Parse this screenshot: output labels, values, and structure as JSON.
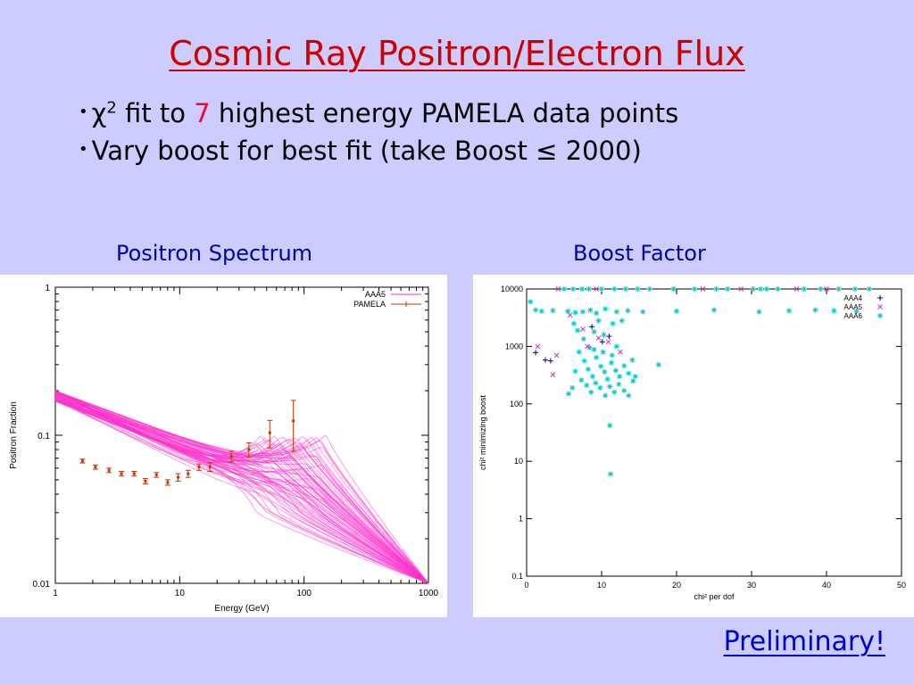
{
  "slide": {
    "title": "Cosmic Ray Positron/Electron Flux",
    "bullets": [
      {
        "pre": "χ",
        "sup": "2",
        "mid": " fit to ",
        "highlight": "7",
        "post": " highest energy PAMELA data points"
      },
      {
        "text": "Vary boost for best fit  (take Boost ≤ 2000)"
      }
    ],
    "bullet_char": "•",
    "panel_titles": [
      "Positron  Spectrum",
      "Boost Factor"
    ],
    "footer": "Preliminary!",
    "colors": {
      "background": "#ccccff",
      "title": "#cc0000",
      "highlight": "#ff0033",
      "panel_title": "#0000aa"
    }
  },
  "chart_data": [
    {
      "type": "line",
      "title": "",
      "xlabel": "Energy (GeV)",
      "ylabel": "Positron Fraction",
      "x_scale": "log",
      "y_scale": "log",
      "xlim": [
        1,
        1000
      ],
      "ylim": [
        0.01,
        1
      ],
      "x_ticks": [
        "1",
        "10",
        "100",
        "1000"
      ],
      "y_ticks": [
        "0.01",
        "0.1",
        "1"
      ],
      "legend": {
        "position": "top-right",
        "entries": [
          "AAA5",
          "PAMELA"
        ]
      },
      "series": [
        {
          "name": "AAA5",
          "color": "#ff33cc",
          "style": "family of thin lines (one per model)",
          "converge_at": [
            1000,
            0.01
          ],
          "peak_energy_range": [
            40,
            150
          ],
          "peak_fraction_range": [
            0.03,
            0.1
          ],
          "start_fraction_range": [
            0.17,
            0.2
          ]
        },
        {
          "name": "PAMELA",
          "color": "#cc3300",
          "style": "points with error bars",
          "points": [
            {
              "x": 1.65,
              "y": 0.067,
              "err": 0.002
            },
            {
              "x": 2.1,
              "y": 0.061,
              "err": 0.002
            },
            {
              "x": 2.7,
              "y": 0.058,
              "err": 0.002
            },
            {
              "x": 3.4,
              "y": 0.055,
              "err": 0.002
            },
            {
              "x": 4.3,
              "y": 0.055,
              "err": 0.002
            },
            {
              "x": 5.3,
              "y": 0.049,
              "err": 0.002
            },
            {
              "x": 6.5,
              "y": 0.054,
              "err": 0.002
            },
            {
              "x": 8.0,
              "y": 0.048,
              "err": 0.002
            },
            {
              "x": 9.7,
              "y": 0.052,
              "err": 0.003
            },
            {
              "x": 11.7,
              "y": 0.055,
              "err": 0.003
            },
            {
              "x": 14.3,
              "y": 0.061,
              "err": 0.003
            },
            {
              "x": 17.5,
              "y": 0.061,
              "err": 0.004
            },
            {
              "x": 26,
              "y": 0.072,
              "err": 0.006
            },
            {
              "x": 36,
              "y": 0.08,
              "err": 0.009
            },
            {
              "x": 53,
              "y": 0.104,
              "err": 0.022
            },
            {
              "x": 82,
              "y": 0.125,
              "err": 0.047
            }
          ]
        }
      ]
    },
    {
      "type": "scatter",
      "title": "",
      "xlabel": "chi² per dof",
      "ylabel": "chi² minimizing boost",
      "x_scale": "linear",
      "y_scale": "log",
      "xlim": [
        0,
        50
      ],
      "ylim": [
        0.1,
        10000
      ],
      "x_ticks": [
        "0",
        "10",
        "20",
        "30",
        "40",
        "50"
      ],
      "y_ticks": [
        "0.1",
        "1",
        "10",
        "100",
        "1000",
        "10000"
      ],
      "legend": {
        "position": "top-right",
        "entries": [
          "AAA4",
          "AAA5",
          "AAA6"
        ]
      },
      "series": [
        {
          "name": "AAA4",
          "marker": "+",
          "color": "#000080",
          "points": [
            [
              1.2,
              780
            ],
            [
              2.5,
              580
            ],
            [
              3.2,
              560
            ],
            [
              8.7,
              2200
            ],
            [
              10.1,
              1200
            ],
            [
              11.0,
              1500
            ]
          ]
        },
        {
          "name": "AAA5",
          "marker": "x",
          "color": "#cc33cc",
          "points": [
            [
              1.5,
              1000
            ],
            [
              3.5,
              320
            ],
            [
              4.0,
              700
            ],
            [
              5.8,
              3500
            ],
            [
              7.5,
              2000
            ],
            [
              8.1,
              1000
            ],
            [
              9.6,
              1400
            ],
            [
              10.9,
              1200
            ],
            [
              12.5,
              800
            ],
            [
              4.2,
              10000
            ],
            [
              9.3,
              10000
            ],
            [
              23.5,
              10000
            ],
            [
              28.6,
              10000
            ],
            [
              36.0,
              10000
            ],
            [
              40.0,
              10000
            ]
          ]
        },
        {
          "name": "AAA6",
          "marker": "*",
          "color": "#00cccc",
          "points": [
            [
              0.5,
              6000
            ],
            [
              1.2,
              4300
            ],
            [
              2.0,
              4100
            ],
            [
              3.5,
              4200
            ],
            [
              5.5,
              4100
            ],
            [
              6.5,
              3900
            ],
            [
              7.5,
              4000
            ],
            [
              8.5,
              4300
            ],
            [
              9.3,
              3800
            ],
            [
              10.5,
              4500
            ],
            [
              12.0,
              4000
            ],
            [
              13.5,
              4200
            ],
            [
              15.5,
              4000
            ],
            [
              20.0,
              4100
            ],
            [
              25.0,
              4300
            ],
            [
              31.0,
              4000
            ],
            [
              35.0,
              4200
            ],
            [
              38.5,
              4300
            ],
            [
              41.0,
              4200
            ],
            [
              44.0,
              4100
            ],
            [
              5.0,
              10000
            ],
            [
              6.2,
              10000
            ],
            [
              7.4,
              10000
            ],
            [
              8.3,
              10000
            ],
            [
              10.0,
              10000
            ],
            [
              11.7,
              10000
            ],
            [
              13.2,
              10000
            ],
            [
              14.8,
              10000
            ],
            [
              16.4,
              10000
            ],
            [
              19.6,
              10000
            ],
            [
              22.4,
              10000
            ],
            [
              25.3,
              10000
            ],
            [
              26.8,
              10000
            ],
            [
              30.2,
              10000
            ],
            [
              31.2,
              10000
            ],
            [
              32.0,
              10000
            ],
            [
              33.5,
              10000
            ],
            [
              37.0,
              10000
            ],
            [
              39.2,
              10000
            ],
            [
              41.6,
              10000
            ],
            [
              43.8,
              10000
            ],
            [
              45.7,
              10000
            ],
            [
              6.3,
              2500
            ],
            [
              6.8,
              1900
            ],
            [
              7.6,
              1350
            ],
            [
              8.4,
              950
            ],
            [
              9.0,
              1800
            ],
            [
              9.6,
              2800
            ],
            [
              10.3,
              1600
            ],
            [
              11.5,
              2500
            ],
            [
              12.7,
              2800
            ],
            [
              7.0,
              800
            ],
            [
              7.7,
              560
            ],
            [
              8.2,
              400
            ],
            [
              8.8,
              300
            ],
            [
              9.3,
              640
            ],
            [
              9.9,
              450
            ],
            [
              10.4,
              360
            ],
            [
              10.8,
              270
            ],
            [
              11.3,
              520
            ],
            [
              11.9,
              380
            ],
            [
              12.4,
              300
            ],
            [
              13.0,
              460
            ],
            [
              13.6,
              340
            ],
            [
              14.2,
              250
            ],
            [
              6.5,
              370
            ],
            [
              7.3,
              260
            ],
            [
              8.0,
              210
            ],
            [
              8.6,
              160
            ],
            [
              9.2,
              230
            ],
            [
              9.8,
              190
            ],
            [
              10.5,
              140
            ],
            [
              11.1,
              200
            ],
            [
              11.7,
              160
            ],
            [
              12.3,
              220
            ],
            [
              13.0,
              170
            ],
            [
              13.6,
              140
            ],
            [
              5.6,
              150
            ],
            [
              6.1,
              190
            ],
            [
              14.5,
              300
            ],
            [
              14.1,
              580
            ],
            [
              17.6,
              480
            ],
            [
              10.2,
              800
            ],
            [
              11.4,
              700
            ],
            [
              12.0,
              1000
            ],
            [
              9.0,
              880
            ],
            [
              11.1,
              42
            ],
            [
              11.2,
              6
            ]
          ]
        }
      ]
    }
  ]
}
